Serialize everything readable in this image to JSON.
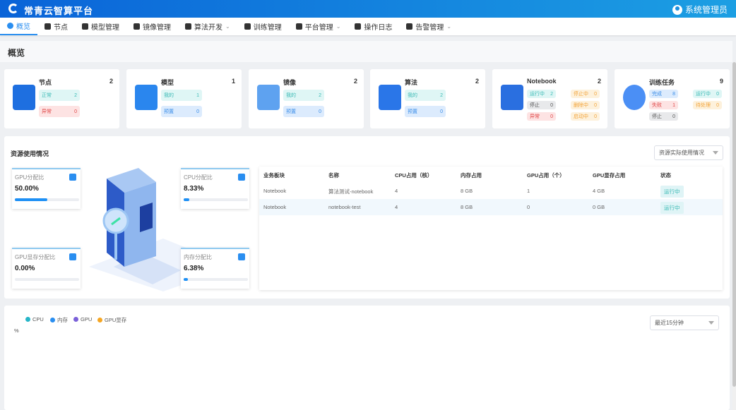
{
  "header": {
    "title": "常青云智算平台",
    "user": "系统管理员"
  },
  "nav": [
    {
      "label": "概览",
      "active": true,
      "icon": "dashboard-icon"
    },
    {
      "label": "节点",
      "icon": "grid-icon"
    },
    {
      "label": "模型管理",
      "icon": "cube-icon"
    },
    {
      "label": "镜像管理",
      "icon": "disc-icon"
    },
    {
      "label": "算法开发",
      "icon": "code-icon",
      "dropdown": true
    },
    {
      "label": "训练管理",
      "icon": "train-icon"
    },
    {
      "label": "平台管理",
      "icon": "layers-icon",
      "dropdown": true
    },
    {
      "label": "操作日志",
      "icon": "log-icon"
    },
    {
      "label": "告警管理",
      "icon": "alarm-icon",
      "dropdown": true
    }
  ],
  "page_title": "概览",
  "cards": [
    {
      "title": "节点",
      "count": "2",
      "icon": "server-icon",
      "items": [
        {
          "label": "正常",
          "value": "2",
          "color": "cyan"
        },
        {
          "label": "异常",
          "value": "0",
          "color": "red"
        }
      ]
    },
    {
      "title": "模型",
      "count": "1",
      "icon": "model-cubes-icon",
      "items": [
        {
          "label": "我的",
          "value": "1",
          "color": "cyan"
        },
        {
          "label": "预置",
          "value": "0",
          "color": "blue"
        }
      ]
    },
    {
      "title": "镜像",
      "count": "2",
      "icon": "image-icon",
      "items": [
        {
          "label": "我的",
          "value": "2",
          "color": "cyan"
        },
        {
          "label": "预置",
          "value": "0",
          "color": "blue"
        }
      ]
    },
    {
      "title": "算法",
      "count": "2",
      "icon": "algorithm-icon",
      "items": [
        {
          "label": "我的",
          "value": "2",
          "color": "cyan"
        },
        {
          "label": "预置",
          "value": "0",
          "color": "blue"
        }
      ]
    },
    {
      "title": "Notebook",
      "count": "2",
      "icon": "notebook-icon",
      "cols": [
        [
          {
            "label": "运行中",
            "value": "2",
            "color": "cyan"
          },
          {
            "label": "停止",
            "value": "0",
            "color": "gray"
          },
          {
            "label": "异常",
            "value": "0",
            "color": "red"
          }
        ],
        [
          {
            "label": "停止中",
            "value": "0",
            "color": "orange"
          },
          {
            "label": "删除中",
            "value": "0",
            "color": "orange"
          },
          {
            "label": "启动中",
            "value": "0",
            "color": "orange"
          }
        ]
      ]
    },
    {
      "title": "训练任务",
      "count": "9",
      "icon": "clock-icon",
      "cols": [
        [
          {
            "label": "完成",
            "value": "8",
            "color": "blue"
          },
          {
            "label": "失败",
            "value": "1",
            "color": "red"
          },
          {
            "label": "停止",
            "value": "0",
            "color": "gray"
          }
        ],
        [
          {
            "label": "运行中",
            "value": "0",
            "color": "cyan"
          },
          {
            "label": "待处理",
            "value": "0",
            "color": "orange"
          }
        ]
      ]
    }
  ],
  "resource": {
    "title": "资源使用情况",
    "select": "资源实际使用情况",
    "stats": [
      {
        "label": "GPU分配比",
        "value": "50.00%",
        "percent": 50
      },
      {
        "label": "CPU分配比",
        "value": "8.33%",
        "percent": 8.33
      },
      {
        "label": "GPU显存分配比",
        "value": "0.00%",
        "percent": 0
      },
      {
        "label": "内存分配比",
        "value": "6.38%",
        "percent": 6.38
      }
    ],
    "table": {
      "headers": [
        "业务板块",
        "名称",
        "CPU占用（核）",
        "内存占用",
        "GPU占用（个）",
        "GPU显存占用",
        "状态"
      ],
      "rows": [
        [
          "Notebook",
          "算法测试-notebook",
          "4",
          "8 GB",
          "1",
          "4 GB",
          "运行中"
        ],
        [
          "Notebook",
          "notebook-test",
          "4",
          "8 GB",
          "0",
          "0 GB",
          "运行中"
        ]
      ]
    }
  },
  "chart": {
    "legend": [
      {
        "name": "CPU",
        "color": "#26b5c8"
      },
      {
        "name": "内存",
        "color": "#2a8ef0"
      },
      {
        "name": "GPU",
        "color": "#7b61d9"
      },
      {
        "name": "GPU显存",
        "color": "#f5a623"
      }
    ],
    "unit": "%",
    "select": "最近15分钟"
  }
}
